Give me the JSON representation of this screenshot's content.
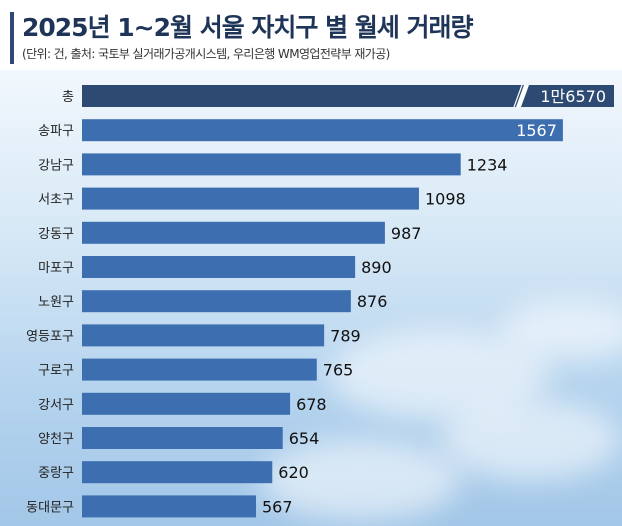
{
  "header": {
    "title": "2025년 1~2월 서울 자치구 별 월세 거래량",
    "subtitle": "(단위: 건, 출처: 국토부 실거래가공개시스템, 우리은행 WM영업전략부 재가공)"
  },
  "colors": {
    "total_bar": "#2d4a73",
    "district_bar": "#3d6fb0",
    "title": "#1f3558"
  },
  "chart_data": {
    "type": "bar",
    "orientation": "horizontal",
    "categories": [
      "총",
      "송파구",
      "강남구",
      "서초구",
      "강동구",
      "마포구",
      "노원구",
      "영등포구",
      "구로구",
      "강서구",
      "양천구",
      "중랑구",
      "동대문구"
    ],
    "values": [
      16570,
      1567,
      1234,
      1098,
      987,
      890,
      876,
      789,
      765,
      678,
      654,
      620,
      567
    ],
    "value_labels": [
      "1만6570",
      "1567",
      "1234",
      "1098",
      "987",
      "890",
      "876",
      "789",
      "765",
      "678",
      "654",
      "620",
      "567"
    ],
    "title": "2025년 1~2월 서울 자치구 별 월세 거래량",
    "unit": "건",
    "axis_break": "총",
    "xlim": [
      0,
      1740
    ],
    "grid": false,
    "legend": false
  }
}
